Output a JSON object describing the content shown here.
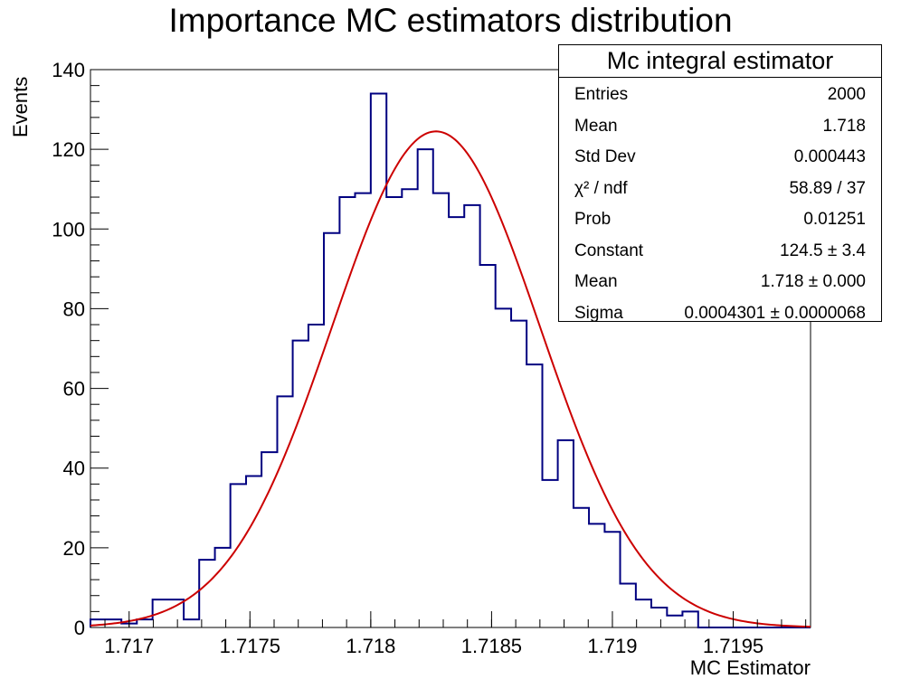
{
  "chart_data": {
    "type": "bar",
    "title": "Importance MC estimators distribution",
    "xlabel": "MC Estimator",
    "ylabel": "Events",
    "xlim": [
      1.71684,
      1.71982
    ],
    "ylim": [
      0,
      140
    ],
    "x_ticks": [
      1.717,
      1.7175,
      1.718,
      1.7185,
      1.719,
      1.7195
    ],
    "x_tick_labels": [
      "1.717",
      "1.7175",
      "1.718",
      "1.7185",
      "1.719",
      "1.7195"
    ],
    "y_ticks": [
      0,
      20,
      40,
      60,
      80,
      100,
      120,
      140
    ],
    "y_tick_labels": [
      "0",
      "20",
      "40",
      "60",
      "80",
      "100",
      "120",
      "140"
    ],
    "bin_edges": [
      1.71684,
      1.716968,
      1.717032,
      1.717097,
      1.717161,
      1.717226,
      1.71729,
      1.717355,
      1.717419,
      1.717484,
      1.717548,
      1.717613,
      1.717677,
      1.717742,
      1.717806,
      1.717871,
      1.717935,
      1.718,
      1.718065,
      1.718129,
      1.718194,
      1.718258,
      1.718323,
      1.718387,
      1.718452,
      1.718516,
      1.718581,
      1.718645,
      1.71871,
      1.718774,
      1.718839,
      1.718903,
      1.718968,
      1.719032,
      1.719097,
      1.719161,
      1.719226,
      1.71929,
      1.719355,
      1.719419,
      1.719484,
      1.719548,
      1.71982
    ],
    "series": [
      {
        "values": [
          2,
          1,
          2,
          7,
          7,
          2,
          17,
          20,
          36,
          38,
          44,
          58,
          72,
          76,
          99,
          108,
          109,
          134,
          108,
          110,
          120,
          109,
          103,
          106,
          91,
          80,
          77,
          66,
          37,
          47,
          30,
          26,
          24,
          11,
          7,
          5,
          3,
          4,
          0,
          0,
          0,
          0
        ],
        "color": "#000080"
      }
    ],
    "fit": {
      "type": "gaussian",
      "color": "#cc0000",
      "constant": 124.5,
      "mean": 1.71827,
      "sigma": 0.0004301
    },
    "grid": false,
    "legend": "top-right"
  },
  "stats_box": {
    "title": "Mc integral estimator",
    "rows": [
      {
        "key": "Entries",
        "value": "2000"
      },
      {
        "key": "Mean",
        "value": "1.718"
      },
      {
        "key": "Std Dev",
        "value": "0.000443"
      },
      {
        "key": "χ² / ndf",
        "value": "58.89 / 37"
      },
      {
        "key": "Prob",
        "value": "0.01251"
      },
      {
        "key": "Constant",
        "value": "124.5 ± 3.4"
      },
      {
        "key": "Mean",
        "value": "1.718 ± 0.000"
      },
      {
        "key": "Sigma",
        "value": "0.0004301 ± 0.0000068"
      }
    ]
  }
}
